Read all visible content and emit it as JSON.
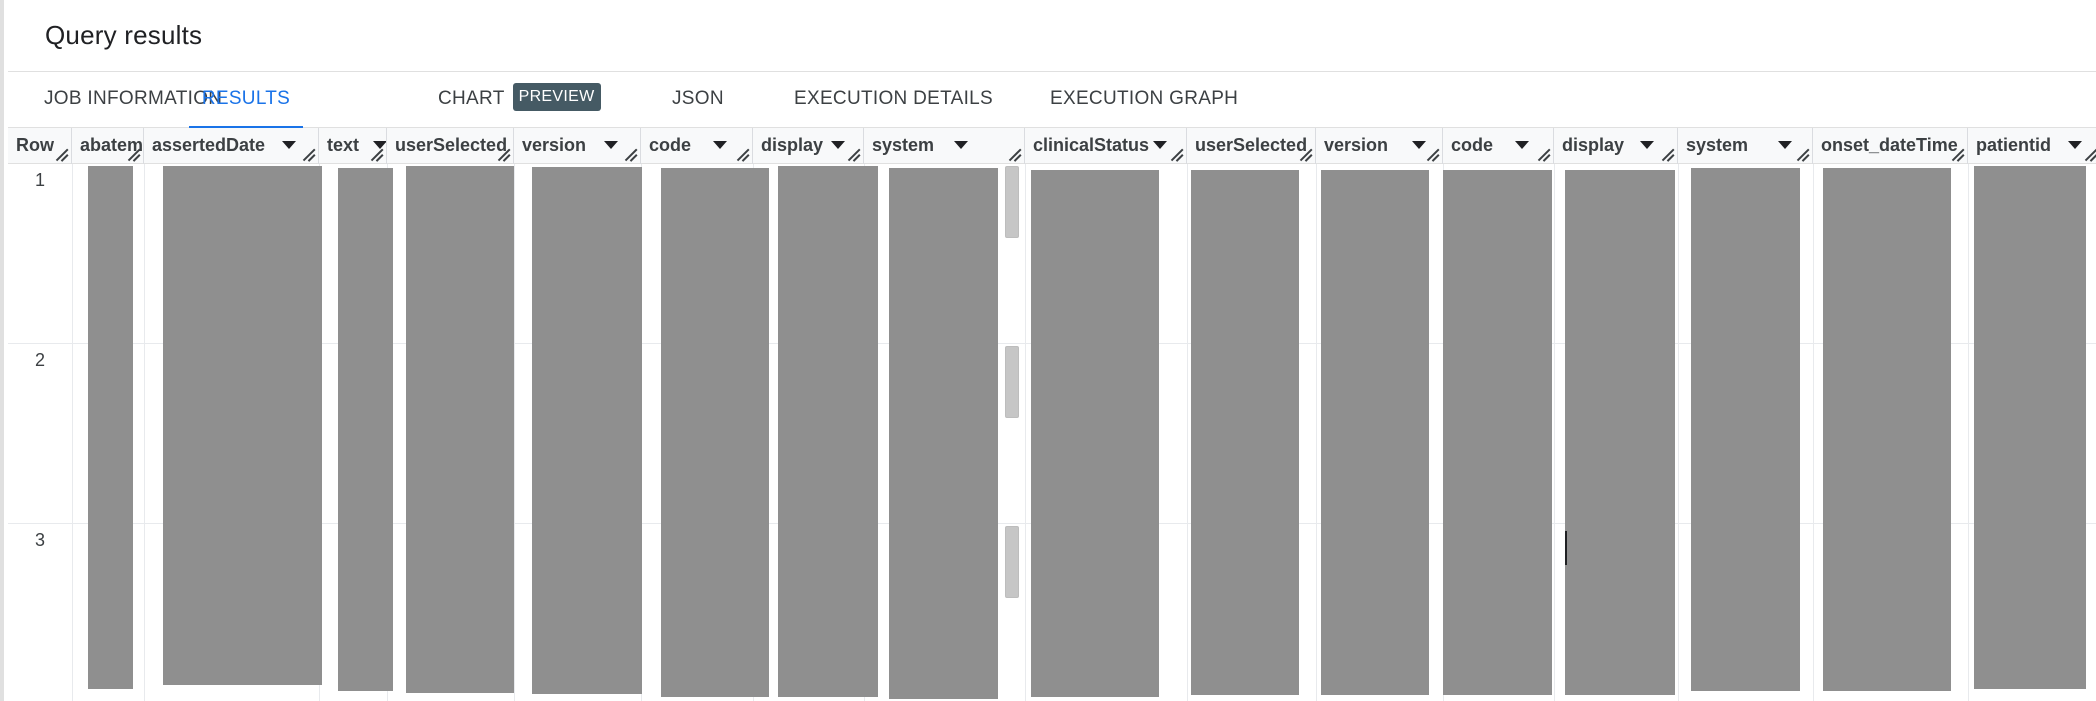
{
  "panel": {
    "title": "Query results"
  },
  "tabs": [
    {
      "label": "JOB INFORMATION",
      "active": false
    },
    {
      "label": "RESULTS",
      "active": true
    },
    {
      "label": "CHART",
      "badge": "PREVIEW",
      "active": false
    },
    {
      "label": "JSON",
      "active": false
    },
    {
      "label": "EXECUTION DETAILS",
      "active": false
    },
    {
      "label": "EXECUTION GRAPH",
      "active": false
    }
  ],
  "grid": {
    "columns": [
      {
        "label": "Row",
        "sortable": false
      },
      {
        "label": "abatem",
        "sortable": false
      },
      {
        "label": "assertedDate",
        "sortable": true
      },
      {
        "label": "text",
        "sortable": true
      },
      {
        "label": "userSelected",
        "sortable": false
      },
      {
        "label": "version",
        "sortable": true
      },
      {
        "label": "code",
        "sortable": true
      },
      {
        "label": "display",
        "sortable": true
      },
      {
        "label": "system",
        "sortable": true
      },
      {
        "label": "clinicalStatus",
        "sortable": true
      },
      {
        "label": "userSelected",
        "sortable": false
      },
      {
        "label": "version",
        "sortable": true
      },
      {
        "label": "code",
        "sortable": true
      },
      {
        "label": "display",
        "sortable": true
      },
      {
        "label": "system",
        "sortable": true
      },
      {
        "label": "onset_dateTime",
        "sortable": false
      },
      {
        "label": "patientid",
        "sortable": true
      }
    ],
    "rows": [
      {
        "number": "1"
      },
      {
        "number": "2"
      },
      {
        "number": "3"
      }
    ],
    "cell_values_redacted": true,
    "redaction_color": "#8f8f8f"
  },
  "colors": {
    "accent": "#1a73e8",
    "badge_bg": "#455a64"
  }
}
